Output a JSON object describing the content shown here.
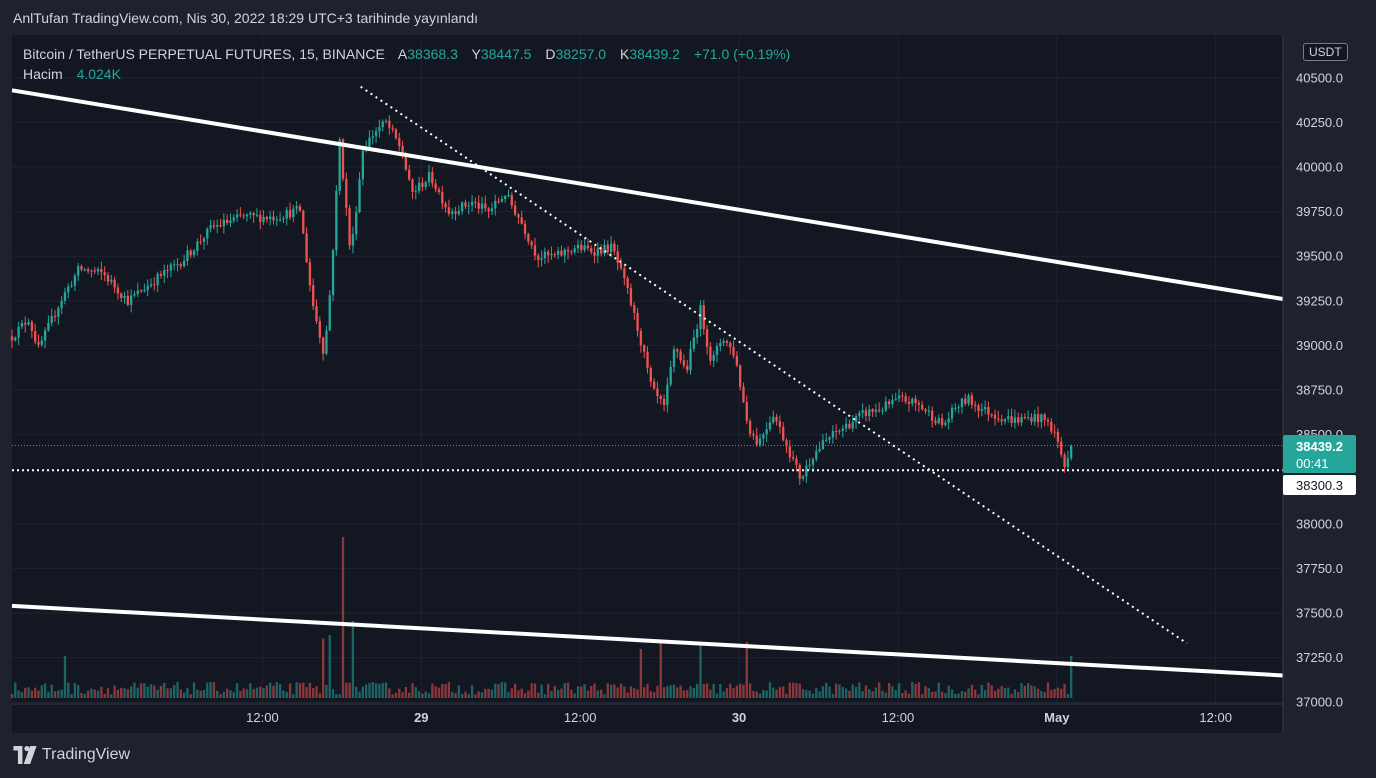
{
  "caption": "AnlTufan TradingView.com, Nis 30, 2022 18:29 UTC+3 tarihinde yayınlandı",
  "legend": {
    "symbol": "Bitcoin / TetherUS PERPETUAL FUTURES, 15, BINANCE",
    "open_label": "A",
    "open": "38368.3",
    "high_label": "Y",
    "high": "38447.5",
    "low_label": "D",
    "low": "38257.0",
    "close_label": "K",
    "close": "38439.2",
    "change": "+71.0 (+0.19%)",
    "volume_label": "Hacim",
    "volume": "4.024K"
  },
  "currency": "USDT",
  "price_badge": {
    "price": "38439.2",
    "countdown": "00:41"
  },
  "line_badge": "38300.3",
  "logo_text": "TradingView",
  "colors": {
    "up": "#26a69a",
    "down": "#ef5350",
    "background": "#131722",
    "grid": "#1f2330",
    "price_line": "#26a69a"
  },
  "chart_data": {
    "type": "candlestick",
    "timeframe": "15",
    "y_ticks": [
      "40500.0",
      "40250.0",
      "40000.0",
      "39750.0",
      "39500.0",
      "39250.0",
      "39000.0",
      "38750.0",
      "38500.0",
      "38000.0",
      "37750.0",
      "37500.0",
      "37250.0",
      "37000.0"
    ],
    "x_ticks": [
      {
        "label": "12:00",
        "t": "2022-04-28 12:00"
      },
      {
        "label": "29",
        "t": "2022-04-29 00:00"
      },
      {
        "label": "12:00",
        "t": "2022-04-29 12:00"
      },
      {
        "label": "30",
        "t": "2022-04-30 00:00"
      },
      {
        "label": "12:00",
        "t": "2022-04-30 12:00"
      },
      {
        "label": "May",
        "t": "2022-05-01 00:00"
      },
      {
        "label": "12:00",
        "t": "2022-05-01 12:00"
      }
    ],
    "ylim": [
      36990,
      40740
    ],
    "xlim": [
      "2022-04-27 17:05",
      "2022-05-01 17:05"
    ],
    "current_price": 38439.2,
    "horizontal_line": 38300.3,
    "trendlines": [
      {
        "name": "upper-channel",
        "style": "solid",
        "from": [
          "2022-04-27 17:05",
          40430
        ],
        "to": [
          "2022-05-01 17:05",
          39260
        ]
      },
      {
        "name": "lower-channel",
        "style": "solid",
        "from": [
          "2022-04-27 17:05",
          37540
        ],
        "to": [
          "2022-05-01 17:05",
          37150
        ]
      },
      {
        "name": "descending-trend",
        "style": "dotted",
        "from": [
          "2022-04-28 19:25",
          40450
        ],
        "to": [
          "2022-05-01 09:50",
          37330
        ]
      }
    ],
    "anchors": [
      [
        "2022-04-27 17:05",
        39050
      ],
      [
        "2022-04-27 18:20",
        39150
      ],
      [
        "2022-04-27 19:05",
        38980
      ],
      [
        "2022-04-27 20:45",
        39250
      ],
      [
        "2022-04-27 22:10",
        39430
      ],
      [
        "2022-04-28 00:00",
        39400
      ],
      [
        "2022-04-28 01:50",
        39250
      ],
      [
        "2022-04-28 03:55",
        39370
      ],
      [
        "2022-04-28 06:00",
        39480
      ],
      [
        "2022-04-28 08:10",
        39660
      ],
      [
        "2022-04-28 10:25",
        39720
      ],
      [
        "2022-04-28 12:55",
        39720
      ],
      [
        "2022-04-28 14:50",
        39760
      ],
      [
        "2022-04-28 15:45",
        39250
      ],
      [
        "2022-04-28 16:40",
        38950
      ],
      [
        "2022-04-28 17:10",
        39350
      ],
      [
        "2022-04-28 17:50",
        40150
      ],
      [
        "2022-04-28 18:40",
        39500
      ],
      [
        "2022-04-28 19:35",
        40100
      ],
      [
        "2022-04-28 20:30",
        40200
      ],
      [
        "2022-04-28 21:20",
        40250
      ],
      [
        "2022-04-28 22:30",
        40100
      ],
      [
        "2022-04-28 23:15",
        39850
      ],
      [
        "2022-04-29 00:40",
        39950
      ],
      [
        "2022-04-29 02:05",
        39750
      ],
      [
        "2022-04-29 03:50",
        39800
      ],
      [
        "2022-04-29 05:05",
        39750
      ],
      [
        "2022-04-29 06:20",
        39850
      ],
      [
        "2022-04-29 07:30",
        39700
      ],
      [
        "2022-04-29 08:45",
        39500
      ],
      [
        "2022-04-29 10:10",
        39500
      ],
      [
        "2022-04-29 11:40",
        39550
      ],
      [
        "2022-04-29 13:05",
        39530
      ],
      [
        "2022-04-29 14:25",
        39550
      ],
      [
        "2022-04-29 15:35",
        39300
      ],
      [
        "2022-04-29 16:30",
        39050
      ],
      [
        "2022-04-29 17:25",
        38750
      ],
      [
        "2022-04-29 18:20",
        38650
      ],
      [
        "2022-04-29 19:10",
        39000
      ],
      [
        "2022-04-29 20:00",
        38850
      ],
      [
        "2022-04-29 21:05",
        39200
      ],
      [
        "2022-04-29 21:55",
        38900
      ],
      [
        "2022-04-29 22:45",
        39050
      ],
      [
        "2022-04-29 23:40",
        38950
      ],
      [
        "2022-04-30 00:40",
        38550
      ],
      [
        "2022-04-30 01:25",
        38450
      ],
      [
        "2022-04-30 02:35",
        38620
      ],
      [
        "2022-04-30 03:50",
        38400
      ],
      [
        "2022-04-30 04:40",
        38250
      ],
      [
        "2022-04-30 05:30",
        38380
      ],
      [
        "2022-04-30 06:45",
        38480
      ],
      [
        "2022-04-30 08:05",
        38550
      ],
      [
        "2022-04-30 09:30",
        38620
      ],
      [
        "2022-04-30 10:50",
        38650
      ],
      [
        "2022-04-30 12:10",
        38700
      ],
      [
        "2022-04-30 13:30",
        38670
      ],
      [
        "2022-04-30 14:40",
        38600
      ],
      [
        "2022-04-30 15:25",
        38550
      ],
      [
        "2022-04-30 16:20",
        38650
      ],
      [
        "2022-04-30 17:15",
        38700
      ],
      [
        "2022-04-30 18:10",
        38650
      ],
      [
        "2022-04-30 19:40",
        38600
      ],
      [
        "2022-04-30 20:55",
        38580
      ],
      [
        "2022-04-30 22:15",
        38600
      ],
      [
        "2022-04-30 23:10",
        38580
      ],
      [
        "2022-04-30 23:55",
        38500
      ],
      [
        "2022-05-01 00:40",
        38300
      ],
      [
        "2022-05-01 01:05",
        38440
      ]
    ],
    "volume_spikes": [
      [
        "2022-04-28 18:05",
        2.3
      ],
      [
        "2022-04-28 18:45",
        1.1
      ],
      [
        "2022-04-28 17:10",
        0.9
      ],
      [
        "2022-04-28 16:40",
        0.85
      ],
      [
        "2022-04-29 18:00",
        0.8
      ],
      [
        "2022-04-30 00:30",
        0.8
      ],
      [
        "2022-04-29 16:30",
        0.7
      ],
      [
        "2022-04-29 21:10",
        0.75
      ],
      [
        "2022-05-01 01:00",
        0.6
      ],
      [
        "2022-04-27 21:05",
        0.6
      ]
    ]
  }
}
